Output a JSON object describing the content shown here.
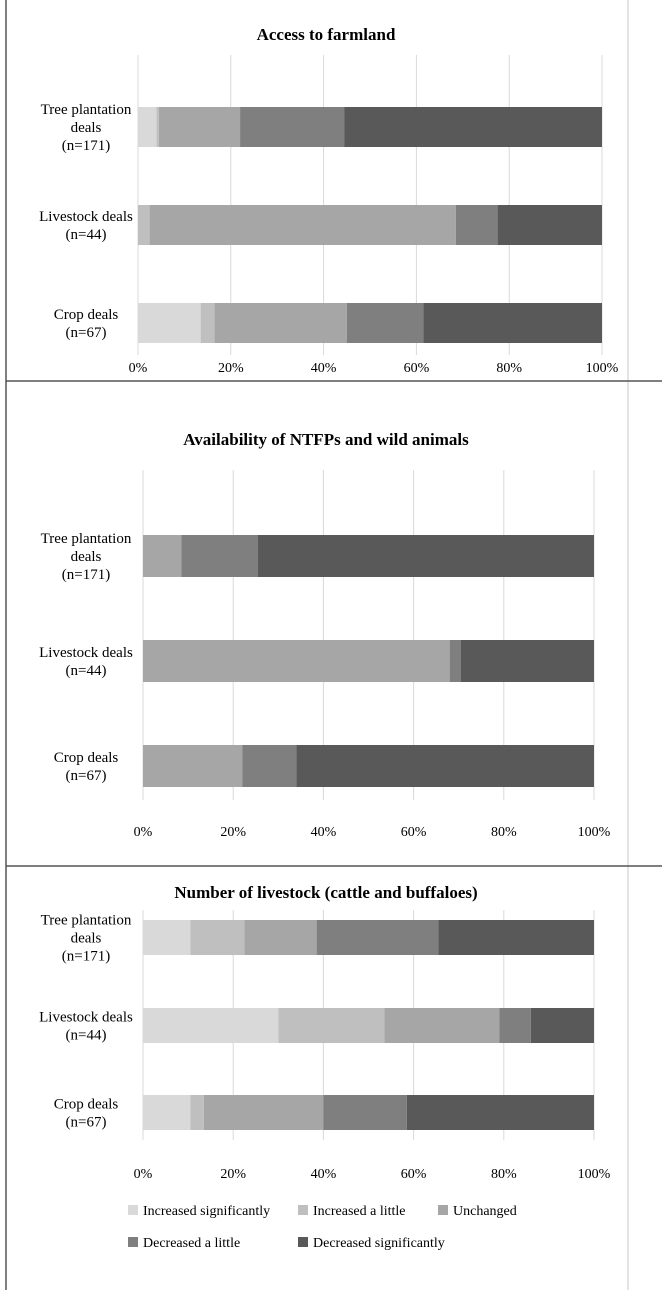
{
  "colors": {
    "increased_significantly": "#d9d9d9",
    "increased_a_little": "#bfbfbf",
    "unchanged": "#a6a6a6",
    "decreased_a_little": "#7f7f7f",
    "decreased_significantly": "#595959",
    "grid": "#d9d9d9",
    "frame": "#555555"
  },
  "legend": {
    "items": [
      {
        "label": "Increased significantly",
        "color": "#d9d9d9"
      },
      {
        "label": "Increased a little",
        "color": "#bfbfbf"
      },
      {
        "label": "Unchanged",
        "color": "#a6a6a6"
      },
      {
        "label": "Decreased a little",
        "color": "#7f7f7f"
      },
      {
        "label": "Decreased significantly",
        "color": "#595959"
      }
    ],
    "placement": "bottom"
  },
  "chart_data": [
    {
      "type": "bar",
      "orientation": "horizontal",
      "stacked": true,
      "title": "Access to farmland",
      "categories": [
        {
          "lines": [
            "Tree plantation",
            "deals",
            "(n=171)"
          ]
        },
        {
          "lines": [
            "Livestock deals",
            "(n=44)"
          ]
        },
        {
          "lines": [
            "Crop deals",
            "(n=67)"
          ]
        }
      ],
      "xticks": [
        "0%",
        "20%",
        "40%",
        "60%",
        "80%",
        "100%"
      ],
      "xlim": [
        0,
        100
      ],
      "grid": true,
      "series": [
        {
          "name": "Increased significantly",
          "values": [
            4,
            0,
            13.5
          ]
        },
        {
          "name": "Increased a little",
          "values": [
            0.5,
            2.5,
            3
          ]
        },
        {
          "name": "Unchanged",
          "values": [
            17.5,
            66,
            28.5
          ]
        },
        {
          "name": "Decreased a little",
          "values": [
            22.5,
            9,
            16.5
          ]
        },
        {
          "name": "Decreased significantly",
          "values": [
            55.5,
            22.5,
            38.5
          ]
        }
      ]
    },
    {
      "type": "bar",
      "orientation": "horizontal",
      "stacked": true,
      "title": "Availability of NTFPs and wild animals",
      "categories": [
        {
          "lines": [
            "Tree plantation",
            "deals",
            "(n=171)"
          ]
        },
        {
          "lines": [
            "Livestock deals",
            "(n=44)"
          ]
        },
        {
          "lines": [
            "Crop deals",
            "(n=67)"
          ]
        }
      ],
      "xticks": [
        "0%",
        "20%",
        "40%",
        "60%",
        "80%",
        "100%"
      ],
      "xlim": [
        0,
        100
      ],
      "grid": true,
      "series": [
        {
          "name": "Increased significantly",
          "values": [
            0,
            0,
            0
          ]
        },
        {
          "name": "Increased a little",
          "values": [
            0,
            0,
            0
          ]
        },
        {
          "name": "Unchanged",
          "values": [
            8.5,
            68,
            22
          ]
        },
        {
          "name": "Decreased a little",
          "values": [
            17,
            2.5,
            12
          ]
        },
        {
          "name": "Decreased significantly",
          "values": [
            74.5,
            29.5,
            66
          ]
        }
      ]
    },
    {
      "type": "bar",
      "orientation": "horizontal",
      "stacked": true,
      "title": "Number of livestock (cattle and buffaloes)",
      "categories": [
        {
          "lines": [
            "Tree plantation",
            "deals",
            "(n=171)"
          ]
        },
        {
          "lines": [
            "Livestock deals",
            "(n=44)"
          ]
        },
        {
          "lines": [
            "Crop deals",
            "(n=67)"
          ]
        }
      ],
      "xticks": [
        "0%",
        "20%",
        "40%",
        "60%",
        "80%",
        "100%"
      ],
      "xlim": [
        0,
        100
      ],
      "grid": true,
      "series": [
        {
          "name": "Increased significantly",
          "values": [
            10.5,
            30,
            10.5
          ]
        },
        {
          "name": "Increased a little",
          "values": [
            12,
            23.5,
            3
          ]
        },
        {
          "name": "Unchanged",
          "values": [
            16,
            25.5,
            26.5
          ]
        },
        {
          "name": "Decreased a little",
          "values": [
            27,
            7,
            18.5
          ]
        },
        {
          "name": "Decreased significantly",
          "values": [
            34.5,
            14,
            41.5
          ]
        }
      ]
    }
  ]
}
